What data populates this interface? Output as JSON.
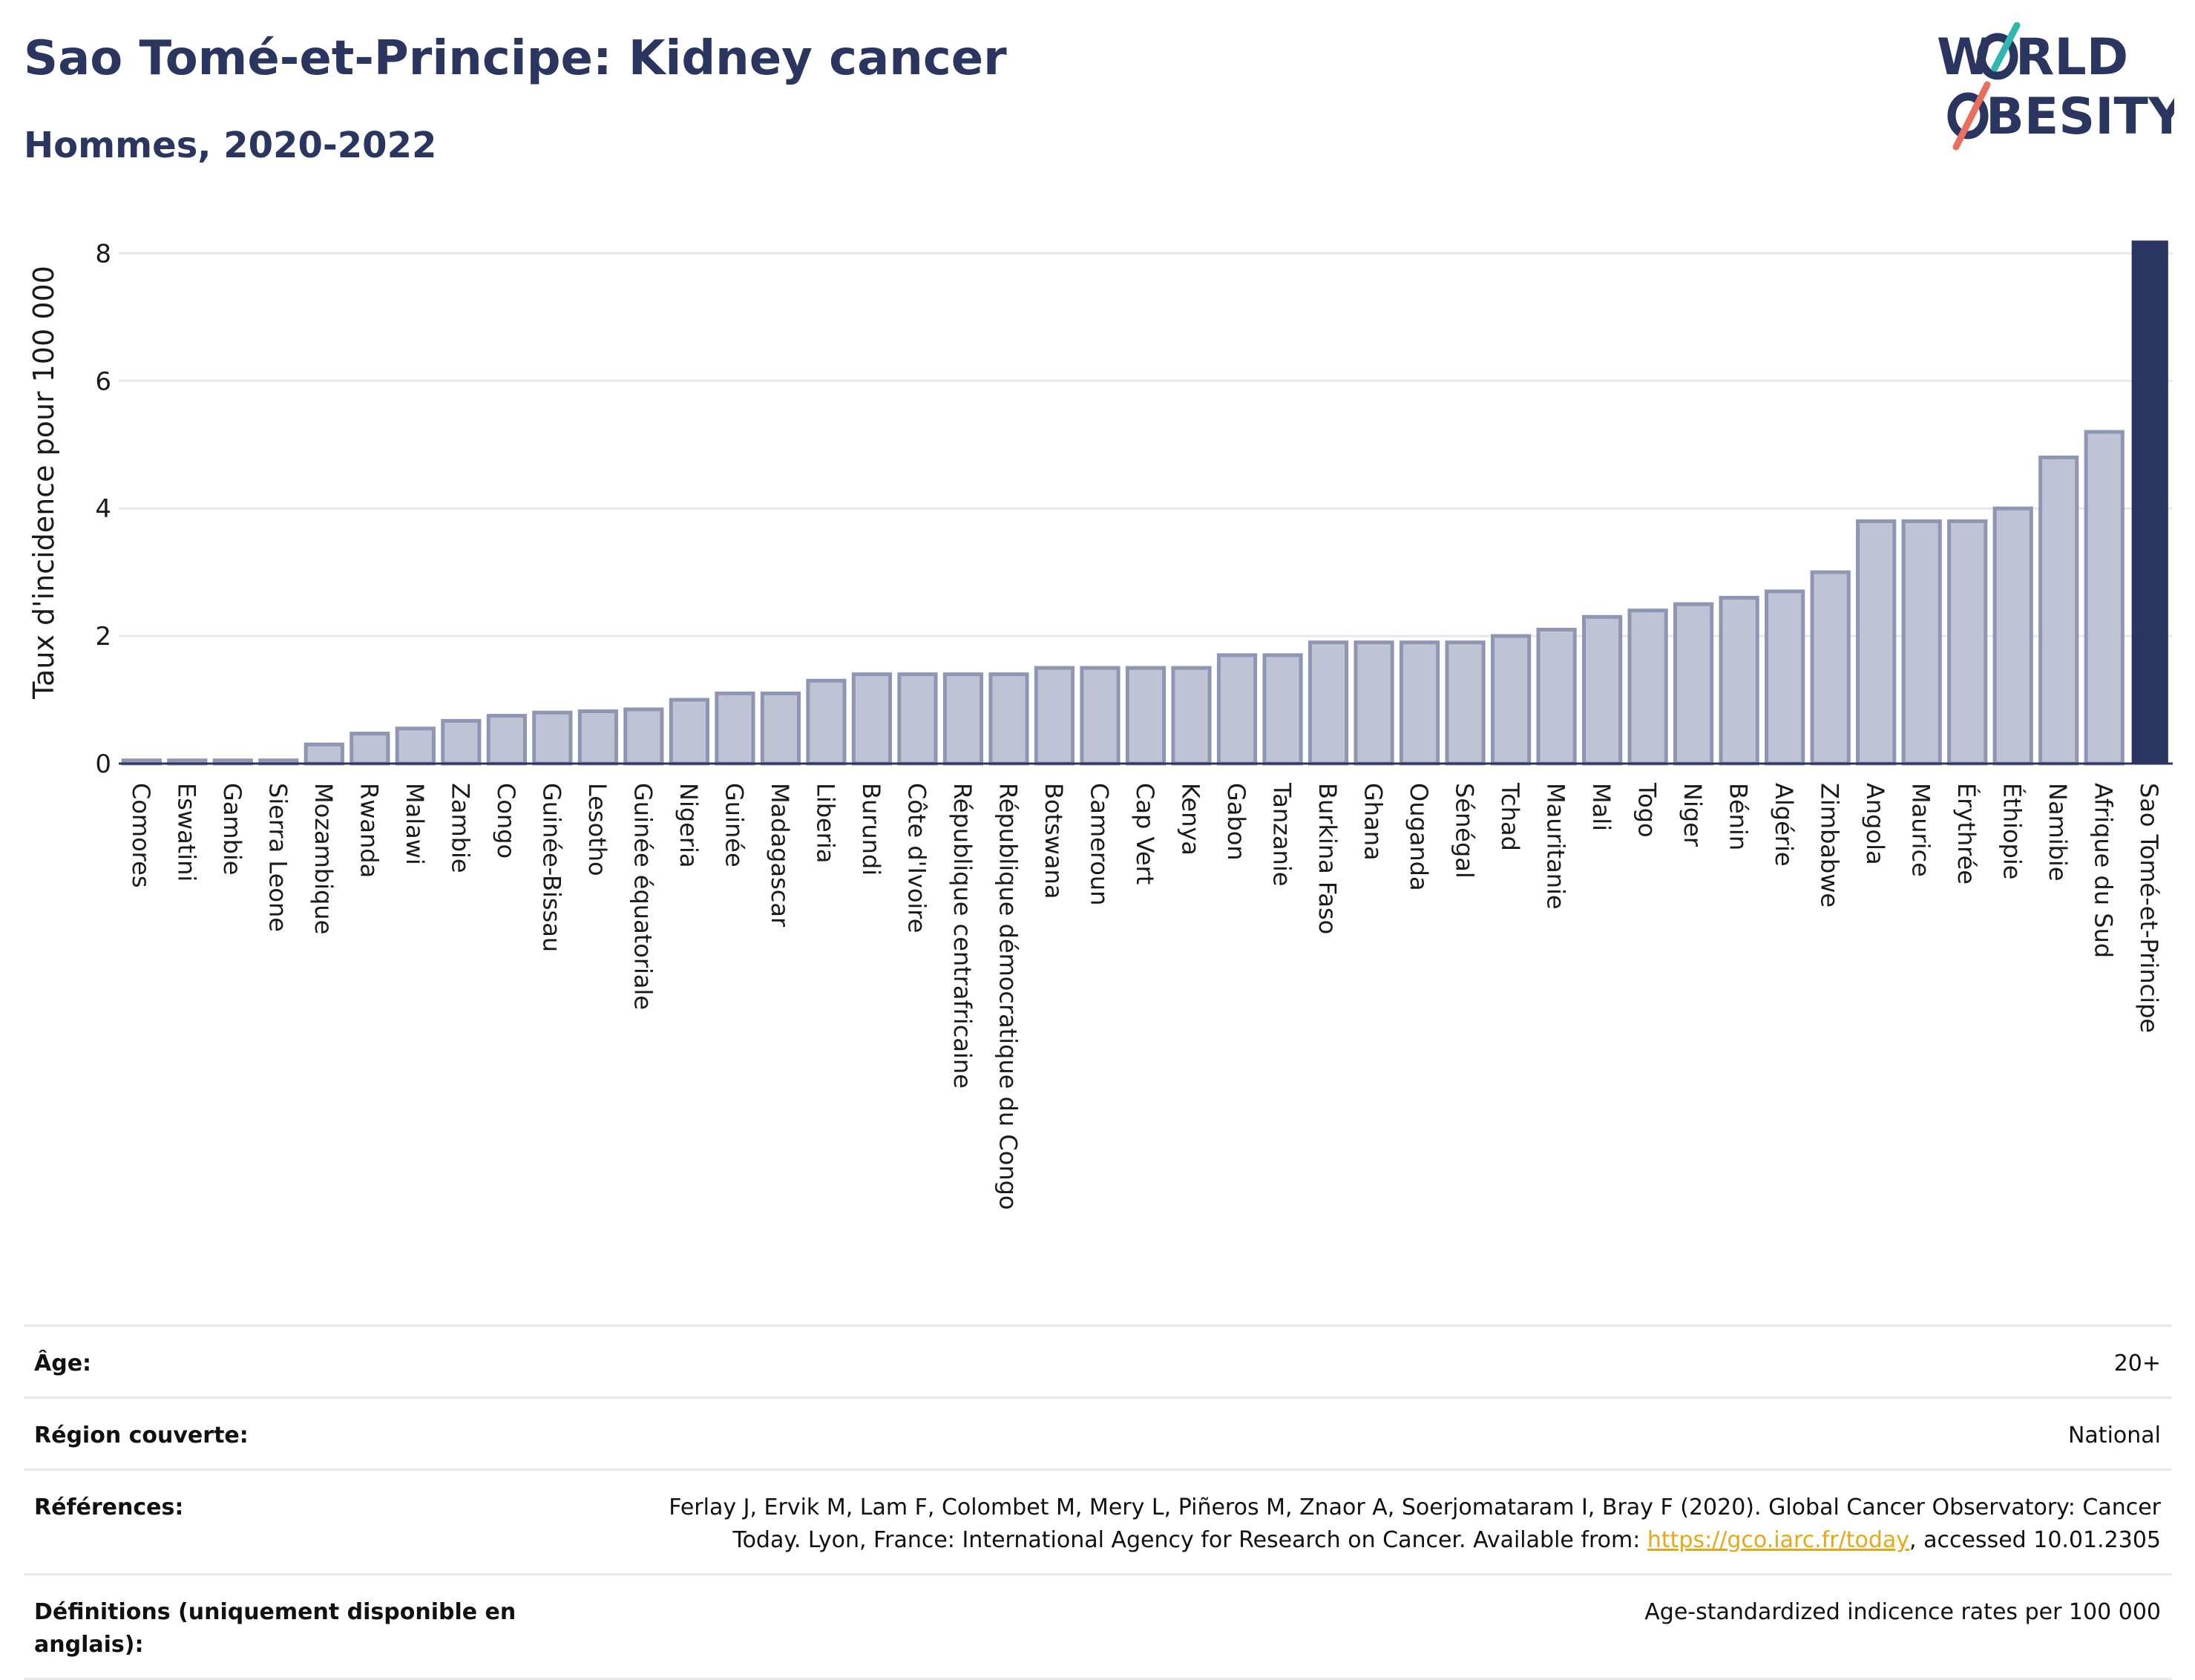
{
  "header": {
    "title": "Sao Tomé-et-Principe: Kidney cancer",
    "subtitle": "Hommes, 2020-2022"
  },
  "logo": {
    "line1": "W",
    "line1b": "RLD",
    "line2": "BESITY",
    "colors": {
      "navy": "#2a3560",
      "teal": "#2fb8b0",
      "coral": "#e8705e"
    }
  },
  "chart_data": {
    "type": "bar",
    "ylabel": "Taux d'incidence pour 100 000",
    "xlabel": "",
    "ylim": [
      0,
      8.4
    ],
    "yticks": [
      0,
      2,
      4,
      6,
      8
    ],
    "grid": true,
    "highlight": "Sao Tomé-et-Principe",
    "colors": {
      "bar": "#bfc3d3",
      "bar_edge": "#8f96b3",
      "highlight": "#2a3560"
    },
    "categories": [
      "Comores",
      "Eswatini",
      "Gambie",
      "Sierra Leone",
      "Mozambique",
      "Rwanda",
      "Malawi",
      "Zambie",
      "Congo",
      "Guinée-Bissau",
      "Lesotho",
      "Guinée équatoriale",
      "Nigeria",
      "Guinée",
      "Madagascar",
      "Liberia",
      "Burundi",
      "Côte d'Ivoire",
      "République centrafricaine",
      "République démocratique du Congo",
      "Botswana",
      "Cameroun",
      "Cap Vert",
      "Kenya",
      "Gabon",
      "Tanzanie",
      "Burkina Faso",
      "Ghana",
      "Ouganda",
      "Sénégal",
      "Tchad",
      "Mauritanie",
      "Mali",
      "Togo",
      "Niger",
      "Bénin",
      "Algérie",
      "Zimbabwe",
      "Angola",
      "Maurice",
      "Érythrée",
      "Éthiopie",
      "Namibie",
      "Afrique du Sud",
      "Sao Tomé-et-Principe"
    ],
    "values": [
      0.05,
      0.05,
      0.05,
      0.05,
      0.3,
      0.47,
      0.55,
      0.67,
      0.75,
      0.8,
      0.82,
      0.85,
      1.0,
      1.1,
      1.1,
      1.3,
      1.4,
      1.4,
      1.4,
      1.4,
      1.5,
      1.5,
      1.5,
      1.5,
      1.7,
      1.7,
      1.9,
      1.9,
      1.9,
      1.9,
      2.0,
      2.1,
      2.3,
      2.4,
      2.5,
      2.6,
      2.7,
      3.0,
      3.8,
      3.8,
      3.8,
      4.0,
      4.8,
      5.2,
      8.2
    ]
  },
  "meta": {
    "age_label": "Âge:",
    "age_value": "20+",
    "region_label": "Région couverte:",
    "region_value": "National",
    "refs_label": "Références:",
    "refs_line1": "Ferlay J, Ervik M, Lam F, Colombet M, Mery L, Piñeros M, Znaor A, Soerjomataram I, Bray F (2020). Global Cancer Observatory: Cancer",
    "refs_line2_pre": "Today. Lyon, France: International Agency for Research on Cancer. Available from: ",
    "refs_link": "https://gco.iarc.fr/today",
    "refs_line2_post": ", accessed 10.01.2305",
    "defs_label": "Définitions (uniquement disponible en anglais):",
    "defs_value": "Age-standardized indicence rates per 100 000"
  }
}
